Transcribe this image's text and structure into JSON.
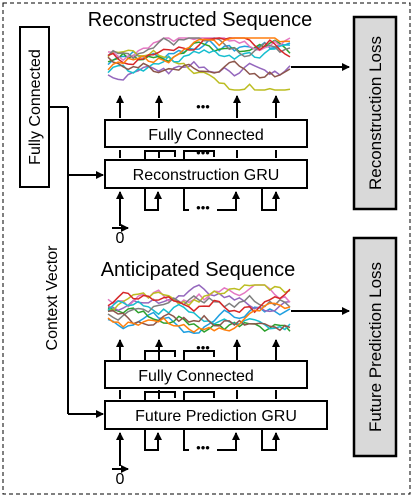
{
  "labels": {
    "fc_side": "Fully Connected",
    "context_vector": "Context Vector",
    "reconstructed_title": "Reconstructed Sequence",
    "anticipated_title": "Anticipated Sequence",
    "fc_top": "Fully Connected",
    "reconstruction_gru": "Reconstruction GRU",
    "fc_bottom": "Fully Connected",
    "future_gru": "Future Prediction GRU",
    "reconstruction_loss": "Reconstruction Loss",
    "future_loss": "Future Prediction Loss",
    "ellipsis": "•••",
    "zero_top": "0",
    "zero_bottom": "0"
  },
  "colors": {
    "series": [
      "#1f9fe0",
      "#2ca02c",
      "#9467bd",
      "#e377c2",
      "#bcbd22",
      "#17becf",
      "#7f7f7f",
      "#8c564b",
      "#d62728",
      "#ff7f0e"
    ],
    "loss_box": "#d9d9d9"
  }
}
